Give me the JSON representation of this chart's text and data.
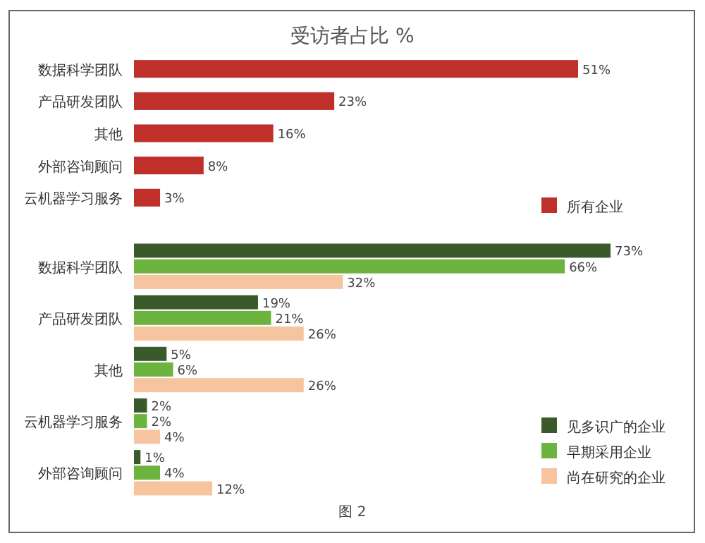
{
  "chart_data": [
    {
      "type": "bar",
      "orientation": "horizontal",
      "title": "受访者占比 %",
      "categories": [
        "数据科学团队",
        "产品研发团队",
        "其他",
        "外部咨询顾问",
        "云机器学习服务"
      ],
      "legend": "bottom right",
      "series": [
        {
          "name": "所有企业",
          "color": "#c0302b",
          "values": [
            51,
            23,
            16,
            8,
            3
          ],
          "value_labels": [
            "51%",
            "23%",
            "16%",
            "8%",
            "3%"
          ]
        }
      ]
    },
    {
      "type": "bar",
      "orientation": "horizontal",
      "categories": [
        "数据科学团队",
        "产品研发团队",
        "其他",
        "云机器学习服务",
        "外部咨询顾问"
      ],
      "legend": "bottom right",
      "annotations": [
        "图 2"
      ],
      "series": [
        {
          "name": "见多识广的企业",
          "color": "#3a5a2c",
          "values": [
            73,
            19,
            5,
            2,
            1
          ],
          "value_labels": [
            "73%",
            "19%",
            "5%",
            "2%",
            "1%"
          ]
        },
        {
          "name": "早期采用企业",
          "color": "#6db33f",
          "values": [
            66,
            21,
            6,
            2,
            4
          ],
          "value_labels": [
            "66%",
            "21%",
            "6%",
            "2%",
            "4%"
          ]
        },
        {
          "name": "尚在研究的企业",
          "color": "#f7c4a0",
          "values": [
            32,
            26,
            26,
            4,
            12
          ],
          "value_labels": [
            "32%",
            "26%",
            "26%",
            "4%",
            "12%"
          ]
        }
      ]
    }
  ]
}
